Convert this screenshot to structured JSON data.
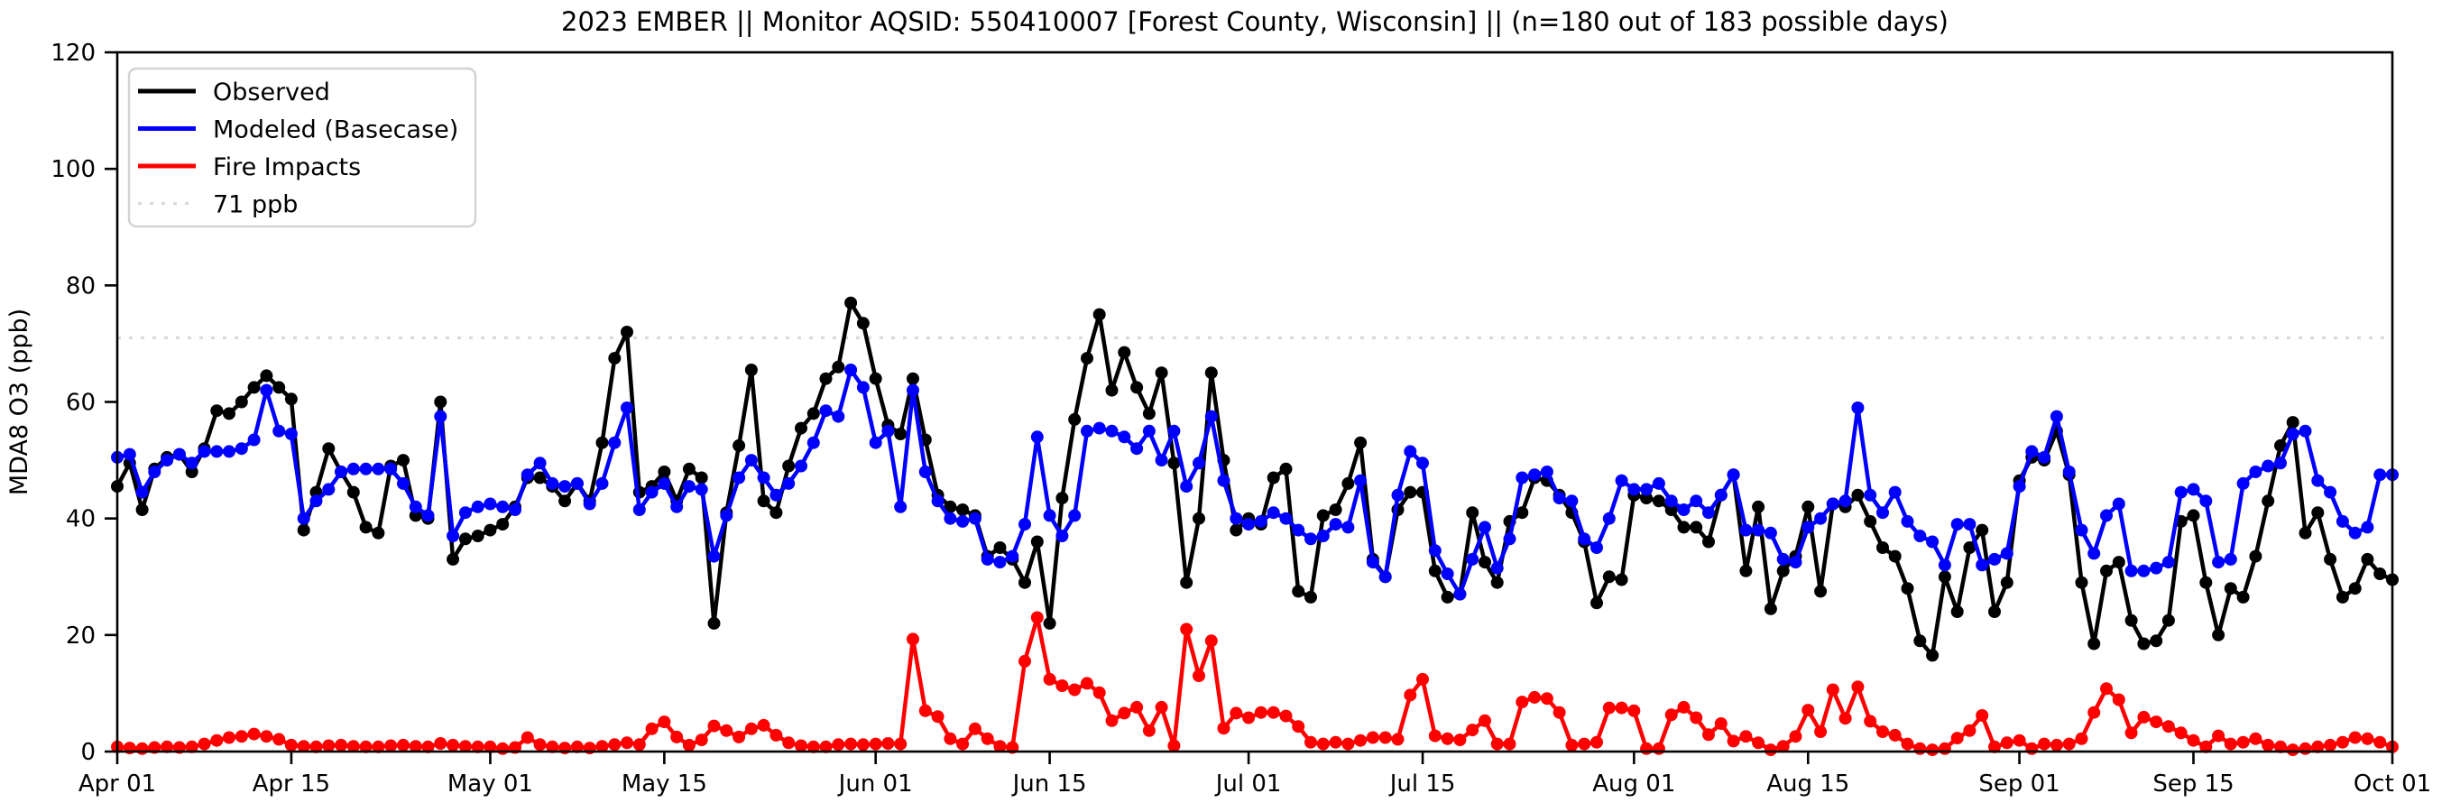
{
  "window": {
    "background": "#ffffff"
  },
  "chart_data": {
    "type": "line",
    "title": "2023 EMBER || Monitor AQSID: 550410007 [Forest County, Wisconsin] || (n=180 out of 183 possible days)",
    "xlabel": "",
    "ylabel": "MDA8 O3 (ppb)",
    "ylim": [
      0,
      120
    ],
    "y_ticks": [
      0,
      20,
      40,
      60,
      80,
      100,
      120
    ],
    "x_start_date": "Apr 01",
    "x_end_date": "Oct 01",
    "x_tick_labels": [
      "Apr 01",
      "Apr 15",
      "May 01",
      "May 15",
      "Jun 01",
      "Jun 15",
      "Jul 01",
      "Jul 15",
      "Aug 01",
      "Aug 15",
      "Sep 01",
      "Sep 15",
      "Oct 01"
    ],
    "x_tick_day_index": [
      0,
      14,
      30,
      44,
      61,
      75,
      91,
      105,
      122,
      136,
      153,
      167,
      183
    ],
    "n_days_total": 184,
    "grid": "off",
    "threshold": {
      "label": "71 ppb",
      "value": 71,
      "color": "#d9d9d9",
      "style": "dotted"
    },
    "legend_position": "upper-left",
    "series": [
      {
        "name": "Observed",
        "color": "#000000",
        "values": [
          45.5,
          49.5,
          41.5,
          48.5,
          50.5,
          51,
          48,
          52,
          58.5,
          58,
          60,
          62.5,
          64.5,
          62.5,
          60.5,
          38,
          44.5,
          52,
          48,
          44.5,
          38.5,
          37.5,
          49,
          50,
          40.5,
          40,
          60,
          33,
          36.5,
          37,
          38,
          39,
          42,
          47,
          47,
          45.5,
          43,
          46,
          43,
          53,
          67.5,
          72,
          44.5,
          45.5,
          48,
          43,
          48.5,
          47,
          22,
          41,
          52.5,
          65.5,
          43,
          41,
          49,
          55.5,
          58,
          64,
          66,
          77,
          73.5,
          64,
          56,
          54.5,
          64,
          53.5,
          44,
          42,
          41.5,
          40.5,
          33.5,
          35,
          33,
          29,
          36,
          22,
          43.5,
          57,
          67.5,
          75,
          62,
          68.5,
          62.5,
          58,
          65,
          49.5,
          29,
          40,
          65,
          50,
          38,
          40,
          39,
          47,
          48.5,
          27.5,
          26.5,
          40.5,
          41.5,
          46,
          53,
          33,
          30,
          41.5,
          44.5,
          44.5,
          31,
          26.5,
          27,
          41,
          32.5,
          29,
          39.5,
          41,
          47,
          46.5,
          44,
          41,
          36,
          25.5,
          30,
          29.5,
          44,
          43.5,
          43,
          41.5,
          38.5,
          38.5,
          36,
          44,
          47.5,
          31,
          42,
          24.5,
          31,
          33.5,
          42,
          27.5,
          42.5,
          42,
          44,
          39.5,
          35,
          33.5,
          28,
          19,
          16.5,
          30,
          24,
          35,
          38,
          24,
          29,
          46.5,
          50.5,
          50,
          55,
          47.5,
          29,
          18.5,
          31,
          32.5,
          22.5,
          18.5,
          19,
          22.5,
          39.5,
          40.5,
          29,
          20,
          28,
          26.5,
          33.5,
          43,
          52.5,
          56.5,
          37.5,
          41,
          33,
          26.5,
          28,
          33,
          30.5,
          29.5
        ]
      },
      {
        "name": "Modeled (Basecase)",
        "color": "#0000ff",
        "values": [
          50.5,
          51,
          44.5,
          48,
          50,
          51,
          49.5,
          51.5,
          51.5,
          51.5,
          52,
          53.5,
          62,
          55,
          54.5,
          40,
          43,
          45,
          48,
          48.5,
          48.5,
          48.5,
          48.5,
          46,
          42,
          40.5,
          57.5,
          37,
          41,
          42,
          42.5,
          42,
          41.5,
          47.5,
          49.5,
          46,
          45.5,
          46,
          42.5,
          46,
          53,
          59,
          41.5,
          44.5,
          46,
          42,
          45.5,
          45,
          33.5,
          40.5,
          47,
          50,
          47,
          44,
          46,
          49,
          53,
          58.5,
          57.5,
          65.5,
          62.5,
          53,
          55,
          42,
          62,
          48,
          43,
          40,
          39.5,
          40,
          33,
          32.5,
          33.5,
          39,
          54,
          40.5,
          37,
          40.5,
          55,
          55.5,
          55,
          54,
          52,
          55,
          50,
          55,
          45.5,
          49.5,
          57.5,
          46.5,
          40,
          39,
          39.5,
          41,
          40,
          38,
          36.5,
          37,
          39,
          38.5,
          46.5,
          32.5,
          30,
          44,
          51.5,
          49.5,
          34.5,
          30.5,
          27,
          33,
          38.5,
          31.5,
          36.5,
          47,
          47.5,
          48,
          43.5,
          43,
          36.5,
          35,
          40,
          46.5,
          45,
          45,
          46,
          43,
          41.5,
          43,
          41,
          44,
          47.5,
          38,
          38,
          37.5,
          33,
          32.5,
          38.5,
          40,
          42.5,
          43,
          59,
          44,
          41,
          44.5,
          39.5,
          37,
          36,
          32,
          39,
          39,
          32,
          33,
          34,
          45.5,
          51.5,
          50.5,
          57.5,
          48,
          38,
          34,
          40.5,
          42.5,
          31,
          31,
          31.5,
          32.5,
          44.5,
          45,
          43,
          32.5,
          33,
          46,
          48,
          49,
          49.5,
          54.5,
          55,
          46.5,
          44.5,
          39.5,
          37.5,
          38.5,
          47.5,
          47.5
        ]
      },
      {
        "name": "Fire Impacts",
        "color": "#ff0000",
        "values": [
          0.8,
          0.6,
          0.5,
          0.7,
          0.8,
          0.7,
          0.8,
          1.3,
          1.9,
          2.4,
          2.6,
          3,
          2.6,
          2.1,
          1.1,
          0.9,
          0.8,
          1,
          1.1,
          0.9,
          0.8,
          0.8,
          1,
          1.1,
          0.9,
          0.8,
          1.4,
          1.1,
          0.9,
          0.8,
          0.8,
          0.5,
          0.7,
          2.4,
          1.2,
          0.8,
          0.6,
          0.8,
          0.6,
          0.9,
          1.2,
          1.5,
          1.2,
          3.9,
          5.1,
          2.5,
          1.1,
          2,
          4.4,
          3.6,
          2.5,
          3.9,
          4.5,
          2.8,
          1.5,
          1,
          0.8,
          0.8,
          1.2,
          1.3,
          1.2,
          1.3,
          1.4,
          1.3,
          19.3,
          7,
          6,
          2.2,
          1.3,
          3.9,
          2.2,
          0.9,
          0.7,
          15.5,
          23,
          12.4,
          11.3,
          10.6,
          11.7,
          10.1,
          5.3,
          6.6,
          7.6,
          3.6,
          7.6,
          1,
          21,
          13,
          19,
          4,
          6.6,
          5.8,
          6.7,
          6.7,
          6.1,
          4.3,
          1.6,
          1.3,
          1.6,
          1.3,
          1.9,
          2.4,
          2.4,
          2.1,
          9.7,
          12.4,
          2.7,
          2.2,
          2,
          3.7,
          5.3,
          1.3,
          1.3,
          8.5,
          9.3,
          9.1,
          6.7,
          1.1,
          1.3,
          1.6,
          7.5,
          7.5,
          7,
          0.5,
          0.5,
          6.3,
          7.6,
          5.8,
          2.9,
          4.8,
          1.8,
          2.6,
          1.5,
          0.3,
          0.9,
          2.6,
          7.1,
          3.4,
          10.6,
          5.7,
          11.1,
          5.2,
          3.4,
          2.8,
          1.3,
          0.5,
          0.3,
          0.5,
          2.3,
          3.6,
          6.2,
          0.8,
          1.5,
          1.9,
          0.5,
          1.3,
          1.1,
          1.3,
          2.2,
          6.7,
          10.8,
          8.9,
          3.2,
          5.9,
          5.1,
          4.3,
          3.2,
          1.9,
          0.8,
          2.7,
          1.3,
          1.6,
          2.2,
          1.1,
          0.8,
          0.3,
          0.5,
          0.8,
          1.1,
          1.6,
          2.4,
          2.2,
          1.6,
          0.8
        ]
      }
    ],
    "legend_entries": [
      "Observed",
      "Modeled (Basecase)",
      "Fire Impacts",
      "71 ppb"
    ]
  }
}
